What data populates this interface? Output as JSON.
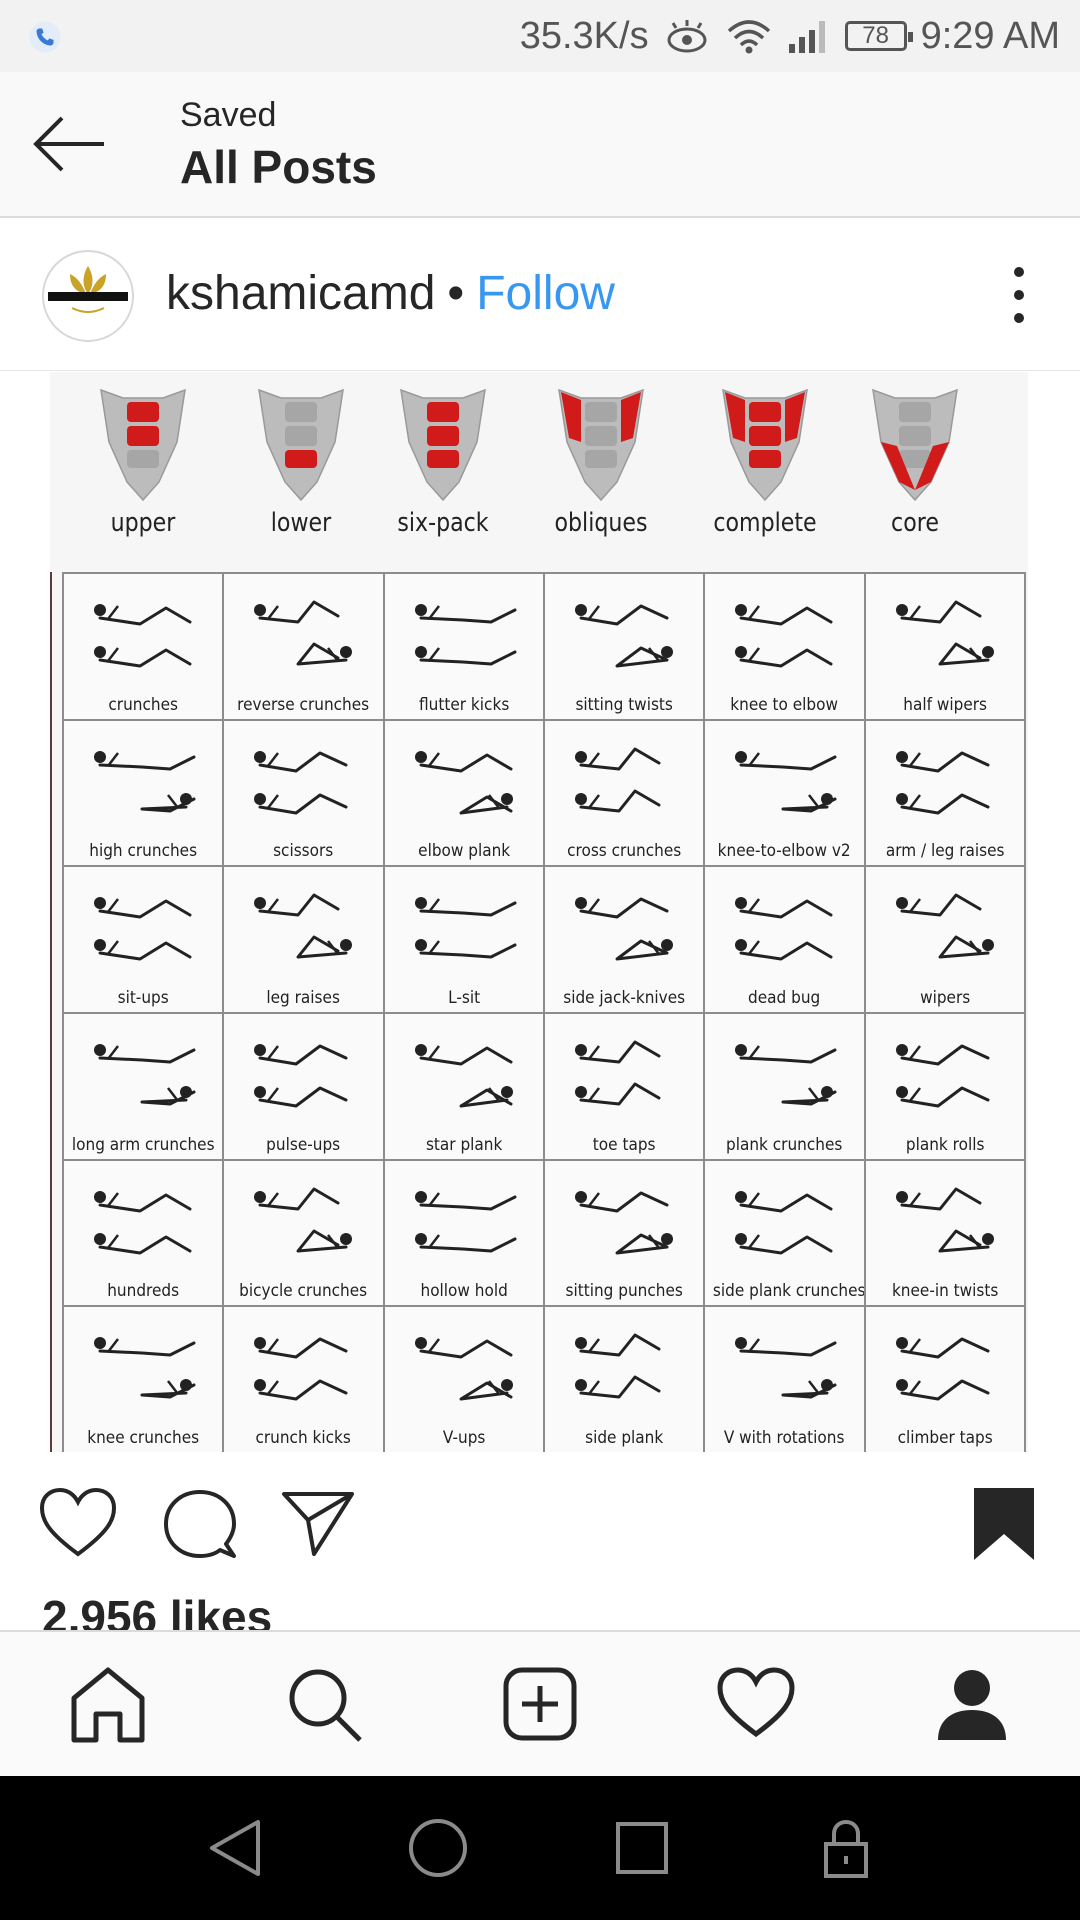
{
  "status_bar": {
    "speed": "35.3K/s",
    "battery": "78",
    "time": "9:29 AM"
  },
  "header": {
    "subtitle": "Saved",
    "title": "All Posts"
  },
  "post": {
    "username": "kshamicamd",
    "separator": "•",
    "follow_label": "Follow",
    "likes": "2,956 likes",
    "image": {
      "ab_regions": [
        "upper",
        "lower",
        "six-pack",
        "obliques",
        "complete",
        "core"
      ],
      "exercises": [
        [
          "crunches",
          "reverse crunches",
          "flutter kicks",
          "sitting twists",
          "knee to elbow",
          "half wipers"
        ],
        [
          "high crunches",
          "scissors",
          "elbow plank",
          "cross crunches",
          "knee-to-elbow v2",
          "arm / leg raises"
        ],
        [
          "sit-ups",
          "leg raises",
          "L-sit",
          "side jack-knives",
          "dead bug",
          "wipers"
        ],
        [
          "long arm crunches",
          "pulse-ups",
          "star plank",
          "toe taps",
          "plank crunches",
          "plank rolls"
        ],
        [
          "hundreds",
          "bicycle crunches",
          "hollow hold",
          "sitting punches",
          "side plank crunches",
          "knee-in twists"
        ],
        [
          "knee crunches",
          "crunch kicks",
          "V-ups",
          "side plank",
          "V with rotations",
          "climber taps"
        ]
      ]
    }
  },
  "colors": {
    "accent_blue": "#3897f0",
    "muscle_red": "#d11a1a",
    "text": "#262626"
  },
  "icons": {
    "back": "arrow-left-icon",
    "more": "more-vertical-icon",
    "like": "heart-icon",
    "comment": "comment-icon",
    "share": "send-icon",
    "save": "bookmark-filled-icon",
    "home": "home-icon",
    "search": "search-icon",
    "add": "add-post-icon",
    "activity": "heart-icon",
    "profile": "profile-icon"
  }
}
